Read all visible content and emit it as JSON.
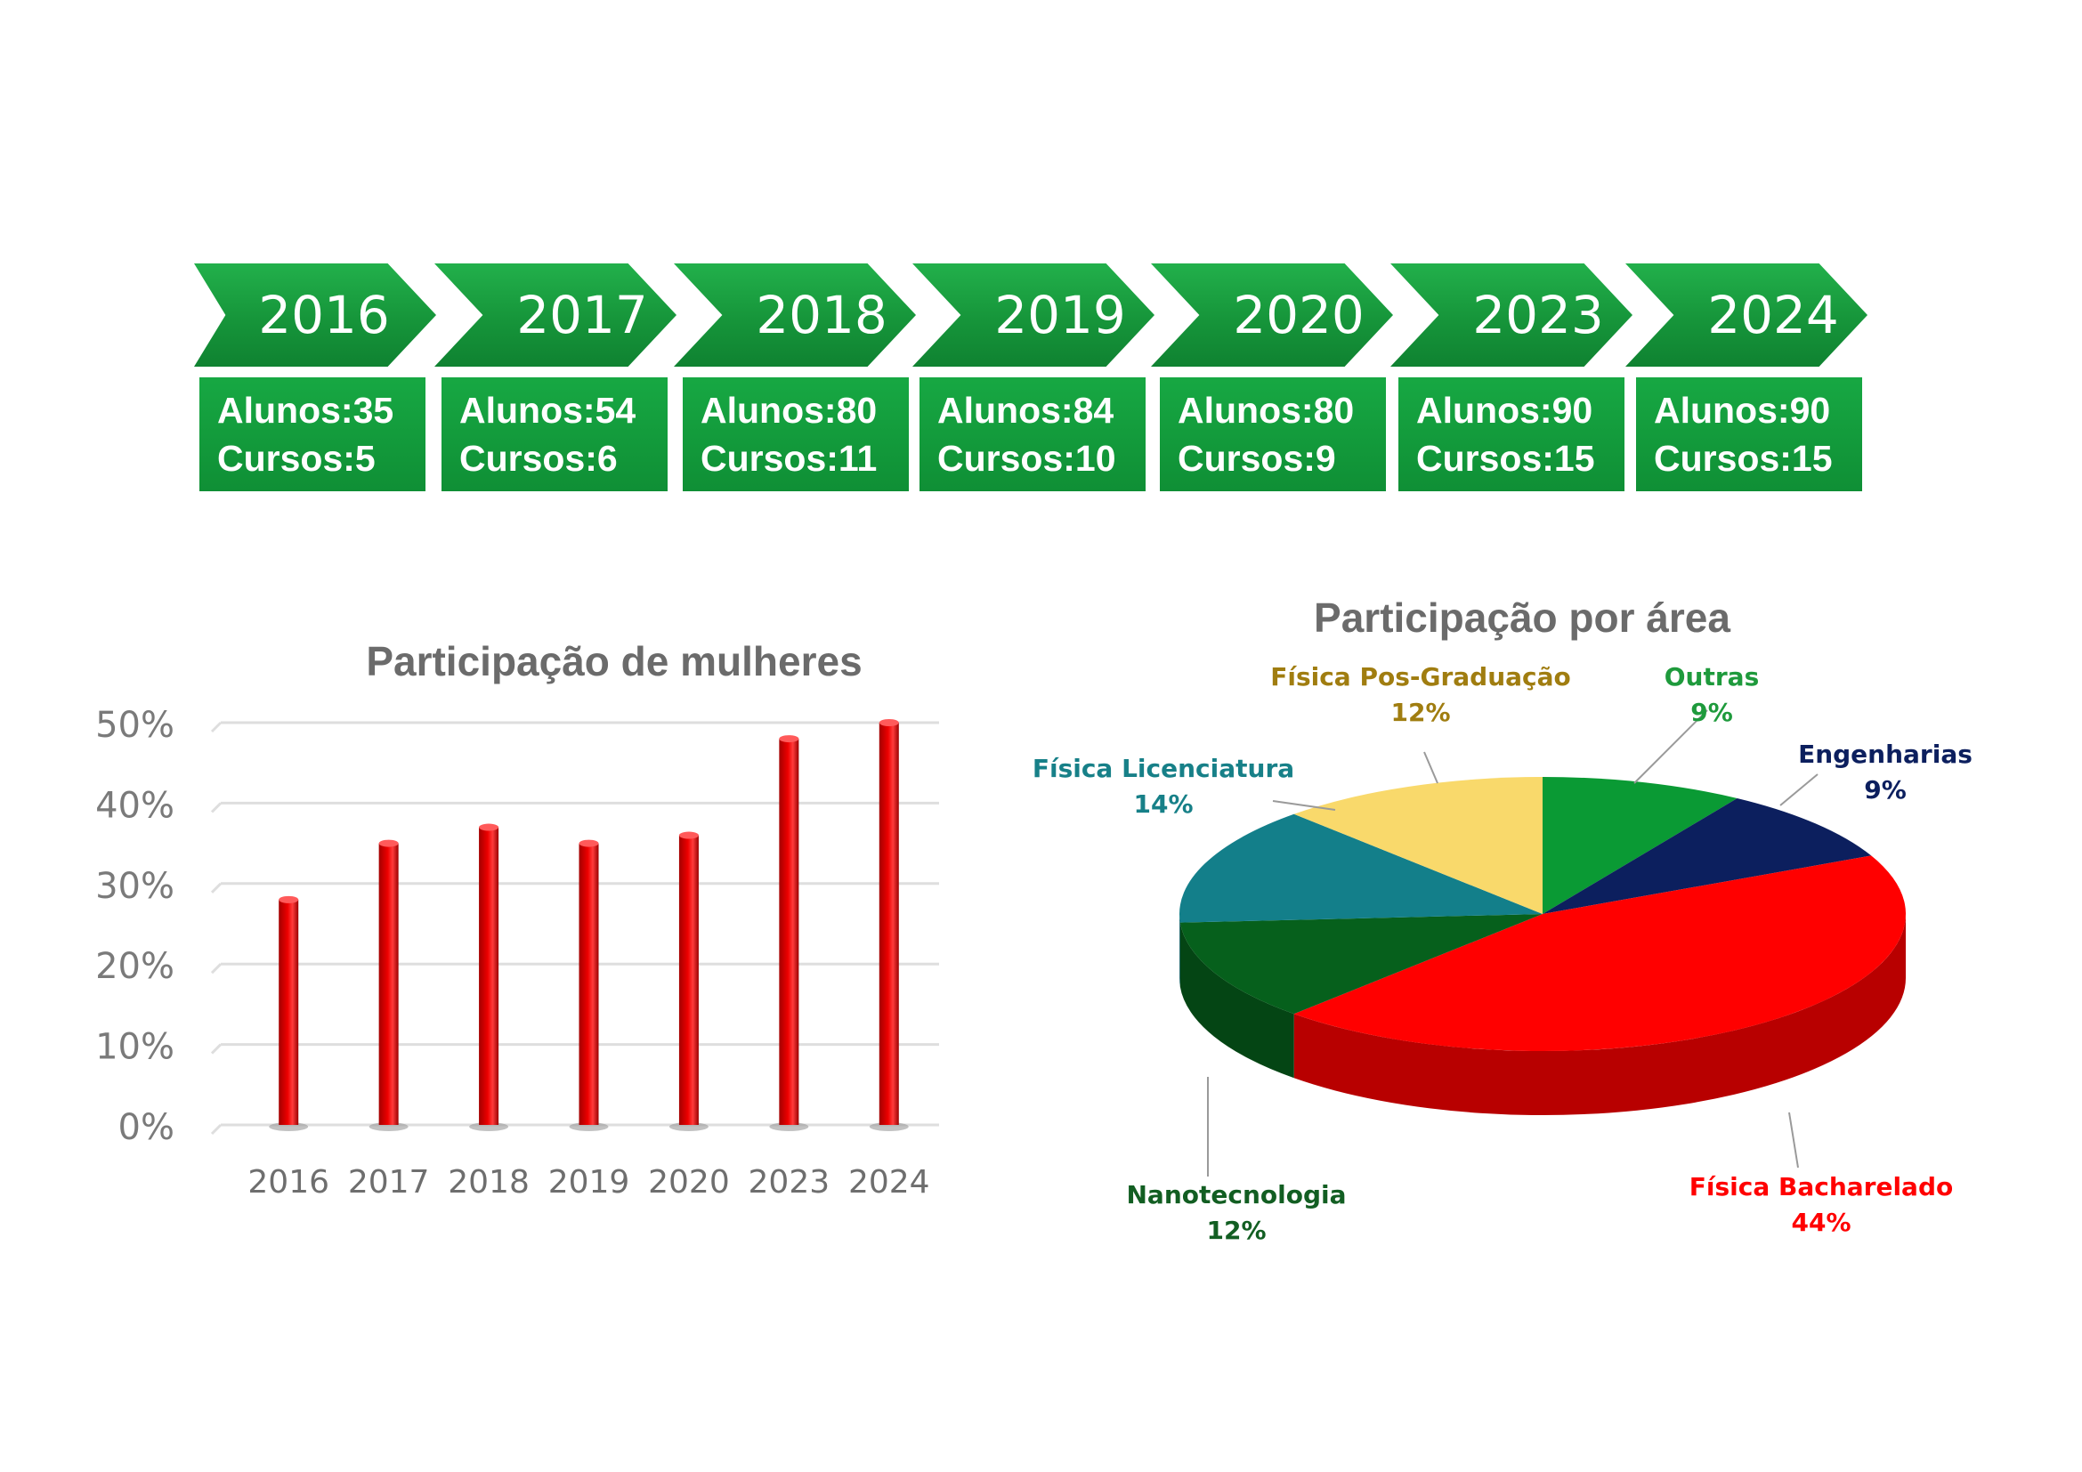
{
  "timeline": {
    "years": [
      "2016",
      "2017",
      "2018",
      "2019",
      "2020",
      "2023",
      "2024"
    ],
    "stats": [
      {
        "alunos": "Alunos:35",
        "cursos": "Cursos:5"
      },
      {
        "alunos": "Alunos:54",
        "cursos": "Cursos:6"
      },
      {
        "alunos": "Alunos:80",
        "cursos": "Cursos:11"
      },
      {
        "alunos": "Alunos:84",
        "cursos": "Cursos:10"
      },
      {
        "alunos": "Alunos:80",
        "cursos": "Cursos:9"
      },
      {
        "alunos": "Alunos:90",
        "cursos": "Cursos:15"
      },
      {
        "alunos": "Alunos:90",
        "cursos": "Cursos:15"
      }
    ],
    "color": "#16953a"
  },
  "chart_data": [
    {
      "type": "bar",
      "title": "Participação de mulheres",
      "categories": [
        "2016",
        "2017",
        "2018",
        "2019",
        "2020",
        "2023",
        "2024"
      ],
      "values": [
        28,
        35,
        37,
        35,
        36,
        48,
        50
      ],
      "ylim": [
        0,
        50
      ],
      "yticks": [
        "0%",
        "10%",
        "20%",
        "30%",
        "40%",
        "50%"
      ],
      "grid": true,
      "bar_color": "#ee0000"
    },
    {
      "type": "pie",
      "title": "Participação por área",
      "slices": [
        {
          "label": "Outras",
          "value": 9,
          "display": "9%",
          "color": "#0a9a34"
        },
        {
          "label": "Engenharias",
          "value": 9,
          "display": "9%",
          "color": "#0c1f5e"
        },
        {
          "label": "Física Bacharelado",
          "value": 44,
          "display": "44%",
          "color": "#ff0000"
        },
        {
          "label": "Nanotecnologia",
          "value": 12,
          "display": "12%",
          "color": "#06601c"
        },
        {
          "label": "Física Licenciatura",
          "value": 14,
          "display": "14%",
          "color": "#137f8a"
        },
        {
          "label": "Física Pos-Graduação",
          "value": 12,
          "display": "12%",
          "color": "#f9d96b"
        }
      ],
      "label_colors": {
        "Outras": "#1e9a3c",
        "Engenharias": "#0c1f5e",
        "Física Bacharelado": "#ff0000",
        "Nanotecnologia": "#125e22",
        "Física Licenciatura": "#178088",
        "Física Pos-Graduação": "#a07d10"
      }
    }
  ]
}
